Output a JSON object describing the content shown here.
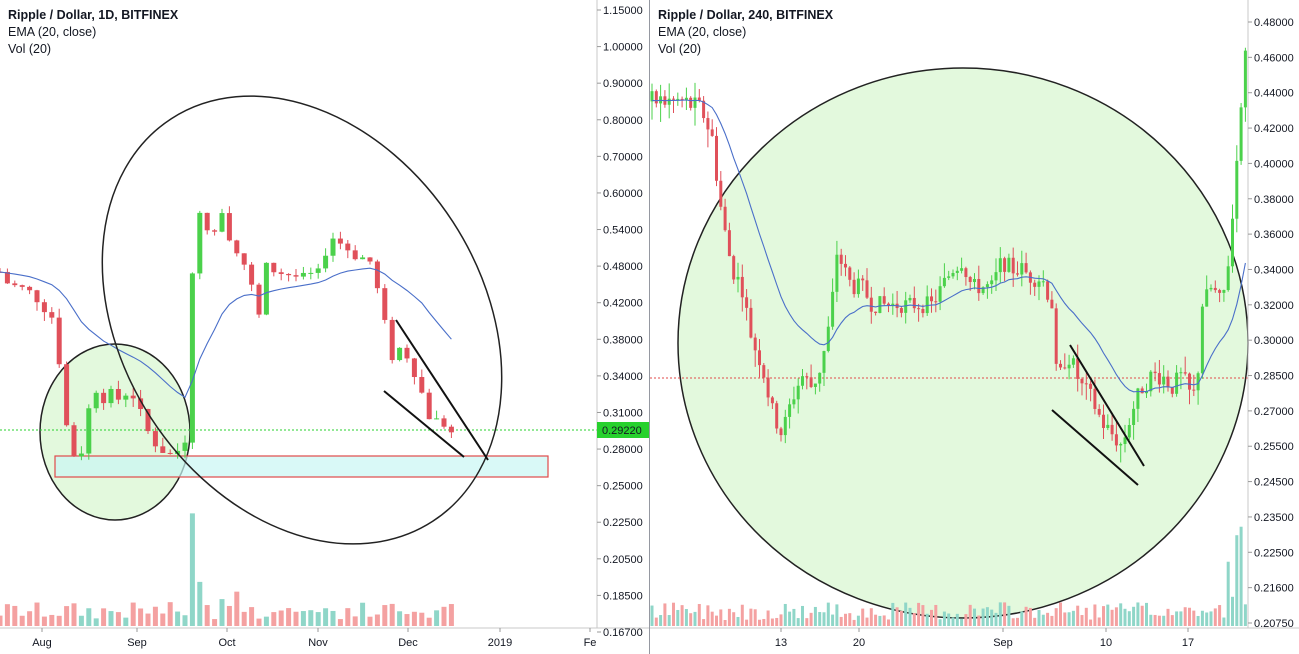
{
  "charts": [
    {
      "title": "Ripple / Dollar, 1D, BITFINEX",
      "indicator1": "EMA (20, close)",
      "indicator2": "Vol (20)",
      "price_axis": [
        "1.15000",
        "1.00000",
        "0.90000",
        "0.80000",
        "0.70000",
        "0.60000",
        "0.54000",
        "0.48000",
        "0.42000",
        "0.38000",
        "0.34000",
        "0.31000",
        "0.28000",
        "0.25000",
        "0.22500",
        "0.20500",
        "0.18500",
        "0.16700"
      ],
      "time_axis": [
        "Aug",
        "Sep",
        "Oct",
        "Nov",
        "Dec",
        "2019",
        "Fe"
      ],
      "last_price": "0.29220"
    },
    {
      "title": "Ripple / Dollar, 240, BITFINEX",
      "indicator1": "EMA (20, close)",
      "indicator2": "Vol (20)",
      "price_axis": [
        "0.48000",
        "0.46000",
        "0.44000",
        "0.42000",
        "0.40000",
        "0.38000",
        "0.36000",
        "0.34000",
        "0.32000",
        "0.30000",
        "0.28500",
        "0.27000",
        "0.25500",
        "0.24500",
        "0.23500",
        "0.22500",
        "0.21600",
        "0.20750"
      ],
      "time_axis": [
        "13",
        "20",
        "Sep",
        "10",
        "17"
      ]
    }
  ],
  "chart_data": [
    {
      "type": "candlestick",
      "title": "Ripple / Dollar, 1D, BITFINEX",
      "scale": "log",
      "ylim": [
        0.16,
        1.2
      ],
      "x_labels": [
        "Aug",
        "Sep",
        "Oct",
        "Nov",
        "Dec",
        "2019",
        "Fe"
      ],
      "approx_close_path": [
        [
          0,
          0.47
        ],
        [
          8,
          0.45
        ],
        [
          18,
          0.445
        ],
        [
          28,
          0.44
        ],
        [
          40,
          0.42
        ],
        [
          55,
          0.4
        ],
        [
          63,
          0.32
        ],
        [
          70,
          0.28
        ],
        [
          78,
          0.27
        ],
        [
          86,
          0.29
        ],
        [
          92,
          0.34
        ],
        [
          100,
          0.32
        ],
        [
          110,
          0.325
        ],
        [
          120,
          0.32
        ],
        [
          130,
          0.33
        ],
        [
          140,
          0.31
        ],
        [
          150,
          0.29
        ],
        [
          160,
          0.28
        ],
        [
          170,
          0.275
        ],
        [
          180,
          0.28
        ],
        [
          186,
          0.29
        ],
        [
          190,
          0.4
        ],
        [
          195,
          0.57
        ],
        [
          205,
          0.55
        ],
        [
          215,
          0.53
        ],
        [
          222,
          0.57
        ],
        [
          228,
          0.53
        ],
        [
          236,
          0.5
        ],
        [
          246,
          0.48
        ],
        [
          256,
          0.42
        ],
        [
          260,
          0.4
        ],
        [
          266,
          0.48
        ],
        [
          276,
          0.47
        ],
        [
          290,
          0.465
        ],
        [
          300,
          0.46
        ],
        [
          310,
          0.465
        ],
        [
          320,
          0.47
        ],
        [
          330,
          0.53
        ],
        [
          338,
          0.52
        ],
        [
          346,
          0.51
        ],
        [
          352,
          0.5
        ],
        [
          360,
          0.49
        ],
        [
          368,
          0.5
        ],
        [
          376,
          0.45
        ],
        [
          384,
          0.4
        ],
        [
          392,
          0.36
        ],
        [
          400,
          0.37
        ],
        [
          408,
          0.36
        ],
        [
          416,
          0.34
        ],
        [
          424,
          0.32
        ],
        [
          432,
          0.3
        ],
        [
          440,
          0.305
        ],
        [
          448,
          0.295
        ],
        [
          454,
          0.2922
        ]
      ],
      "ema_color": "#4a6fc9",
      "up_color": "#4bd14b",
      "down_color": "#e0505a",
      "last_price": 0.2922,
      "last_price_color": "#00e000",
      "volume_spike_month": "Sep"
    },
    {
      "type": "candlestick",
      "title": "Ripple / Dollar, 240, BITFINEX",
      "scale": "log",
      "ylim": [
        0.205,
        0.49
      ],
      "x_labels": [
        "13",
        "20",
        "Sep",
        "10",
        "17"
      ],
      "approx_close_path": [
        [
          0,
          0.435
        ],
        [
          30,
          0.435
        ],
        [
          50,
          0.43
        ],
        [
          60,
          0.415
        ],
        [
          70,
          0.37
        ],
        [
          80,
          0.34
        ],
        [
          90,
          0.33
        ],
        [
          100,
          0.3
        ],
        [
          110,
          0.29
        ],
        [
          120,
          0.27
        ],
        [
          130,
          0.26
        ],
        [
          140,
          0.275
        ],
        [
          150,
          0.285
        ],
        [
          160,
          0.28
        ],
        [
          170,
          0.29
        ],
        [
          178,
          0.31
        ],
        [
          185,
          0.35
        ],
        [
          192,
          0.34
        ],
        [
          200,
          0.33
        ],
        [
          210,
          0.33
        ],
        [
          220,
          0.32
        ],
        [
          240,
          0.32
        ],
        [
          260,
          0.32
        ],
        [
          280,
          0.32
        ],
        [
          300,
          0.34
        ],
        [
          310,
          0.345
        ],
        [
          320,
          0.33
        ],
        [
          340,
          0.33
        ],
        [
          350,
          0.345
        ],
        [
          360,
          0.34
        ],
        [
          370,
          0.34
        ],
        [
          380,
          0.335
        ],
        [
          390,
          0.335
        ],
        [
          400,
          0.32
        ],
        [
          405,
          0.28
        ],
        [
          415,
          0.295
        ],
        [
          420,
          0.29
        ],
        [
          430,
          0.28
        ],
        [
          440,
          0.275
        ],
        [
          450,
          0.265
        ],
        [
          460,
          0.26
        ],
        [
          470,
          0.255
        ],
        [
          480,
          0.27
        ],
        [
          490,
          0.28
        ],
        [
          500,
          0.285
        ],
        [
          510,
          0.285
        ],
        [
          520,
          0.28
        ],
        [
          530,
          0.285
        ],
        [
          540,
          0.275
        ],
        [
          545,
          0.28
        ],
        [
          550,
          0.32
        ],
        [
          560,
          0.33
        ],
        [
          570,
          0.32
        ],
        [
          580,
          0.36
        ],
        [
          590,
          0.44
        ],
        [
          596,
          0.48
        ]
      ],
      "ema_color": "#4a6fc9",
      "up_color": "#4bd14b",
      "down_color": "#e0505a",
      "reference_line": 0.292
    }
  ]
}
